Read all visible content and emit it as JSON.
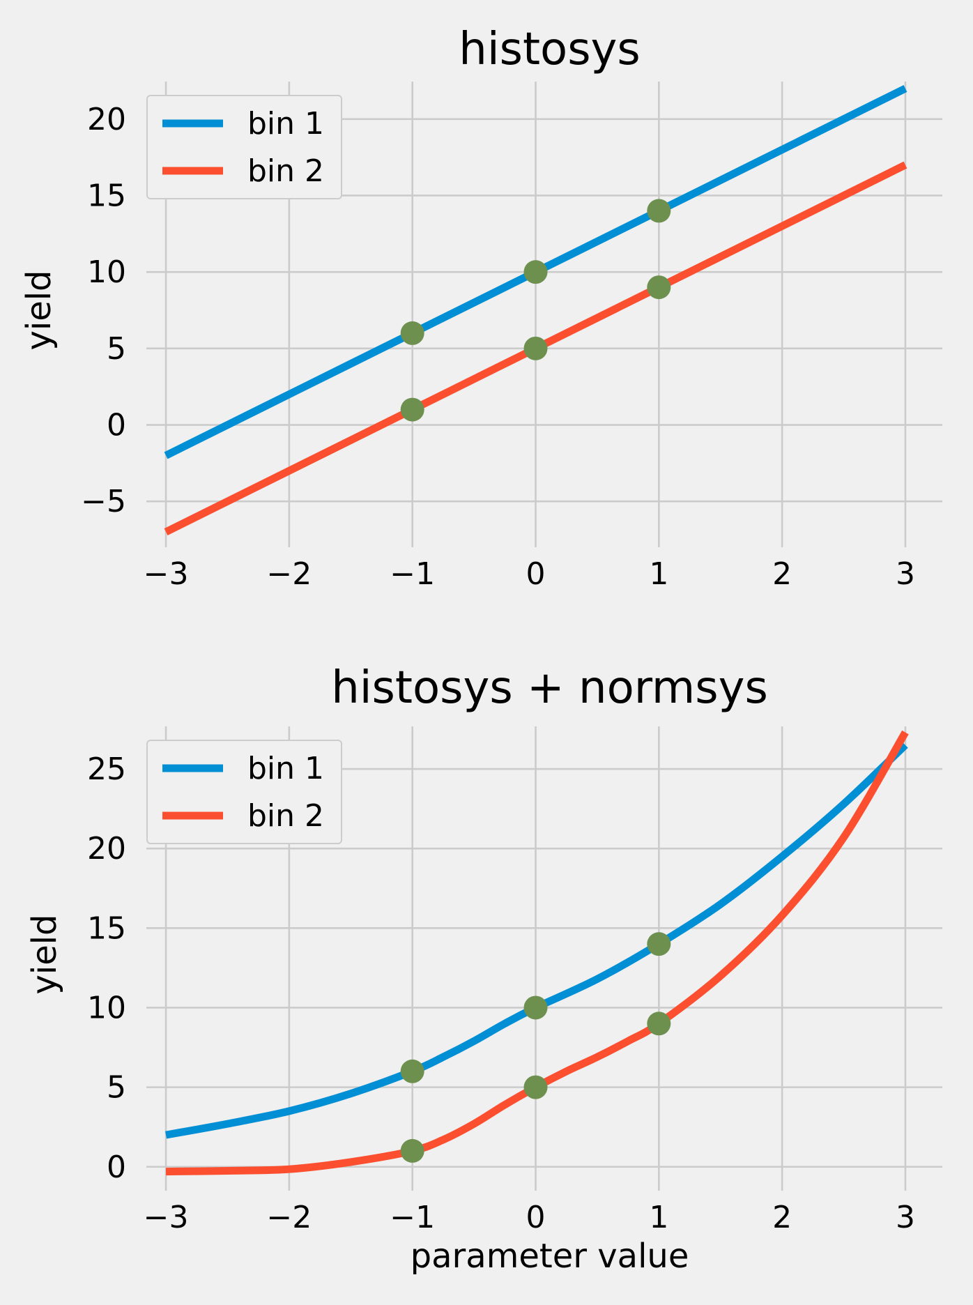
{
  "chart_data": [
    {
      "type": "line",
      "title": "histosys",
      "xlabel": "",
      "ylabel": "yield",
      "xlim": [
        -3.3,
        3.3
      ],
      "ylim": [
        -8,
        23
      ],
      "xticks": [
        -3,
        -2,
        -1,
        0,
        1,
        2,
        3
      ],
      "yticks": [
        -5,
        0,
        5,
        10,
        15,
        20
      ],
      "xtick_labels": [
        "−3",
        "−2",
        "−1",
        "0",
        "1",
        "2",
        "3"
      ],
      "ytick_labels": [
        "−5",
        "0",
        "5",
        "10",
        "15",
        "20"
      ],
      "grid": true,
      "legend_position": "upper-left",
      "series": [
        {
          "name": "bin 1",
          "color": "#008fd5",
          "x": [
            -3,
            -1,
            0,
            1,
            3
          ],
          "y": [
            -2,
            6,
            10,
            14,
            22
          ]
        },
        {
          "name": "bin 2",
          "color": "#fc4f30",
          "x": [
            -3,
            -1,
            0,
            1,
            3
          ],
          "y": [
            -7,
            1,
            5,
            9,
            17
          ]
        }
      ],
      "markers": {
        "color": "#6d904f",
        "x": [
          -1,
          0,
          1,
          -1,
          0,
          1
        ],
        "y": [
          6,
          10,
          14,
          1,
          5,
          9
        ]
      }
    },
    {
      "type": "line",
      "title": "histosys + normsys",
      "xlabel": "parameter value",
      "ylabel": "yield",
      "xlim": [
        -3.3,
        3.3
      ],
      "ylim": [
        -1.5,
        28.2
      ],
      "xticks": [
        -3,
        -2,
        -1,
        0,
        1,
        2,
        3
      ],
      "yticks": [
        0,
        5,
        10,
        15,
        20,
        25
      ],
      "xtick_labels": [
        "−3",
        "−2",
        "−1",
        "0",
        "1",
        "2",
        "3"
      ],
      "ytick_labels": [
        "0",
        "5",
        "10",
        "15",
        "20",
        "25"
      ],
      "grid": true,
      "legend_position": "upper-left",
      "series": [
        {
          "name": "bin 1",
          "color": "#008fd5",
          "x": [
            -3,
            -2.5,
            -2,
            -1.5,
            -1,
            -0.75,
            -0.5,
            -0.25,
            0,
            0.5,
            1,
            1.5,
            2,
            2.5,
            3
          ],
          "y": [
            2.0,
            2.7,
            3.5,
            4.6,
            6.0,
            6.9,
            7.9,
            9.0,
            10.0,
            11.8,
            14.0,
            16.5,
            19.5,
            22.8,
            26.5
          ]
        },
        {
          "name": "bin 2",
          "color": "#fc4f30",
          "x": [
            -3,
            -2.5,
            -2,
            -1.5,
            -1,
            -0.75,
            -0.5,
            -0.25,
            0,
            0.25,
            0.5,
            0.75,
            1,
            1.5,
            2,
            2.5,
            3
          ],
          "y": [
            -0.3,
            -0.25,
            -0.15,
            0.3,
            1.0,
            1.7,
            2.7,
            3.9,
            5.0,
            6.0,
            6.9,
            7.9,
            9.0,
            12.0,
            15.8,
            20.7,
            27.3
          ]
        }
      ],
      "markers": {
        "color": "#6d904f",
        "x": [
          -1,
          0,
          1,
          -1,
          0,
          1
        ],
        "y": [
          6,
          10,
          14,
          1,
          5,
          9
        ]
      }
    }
  ]
}
